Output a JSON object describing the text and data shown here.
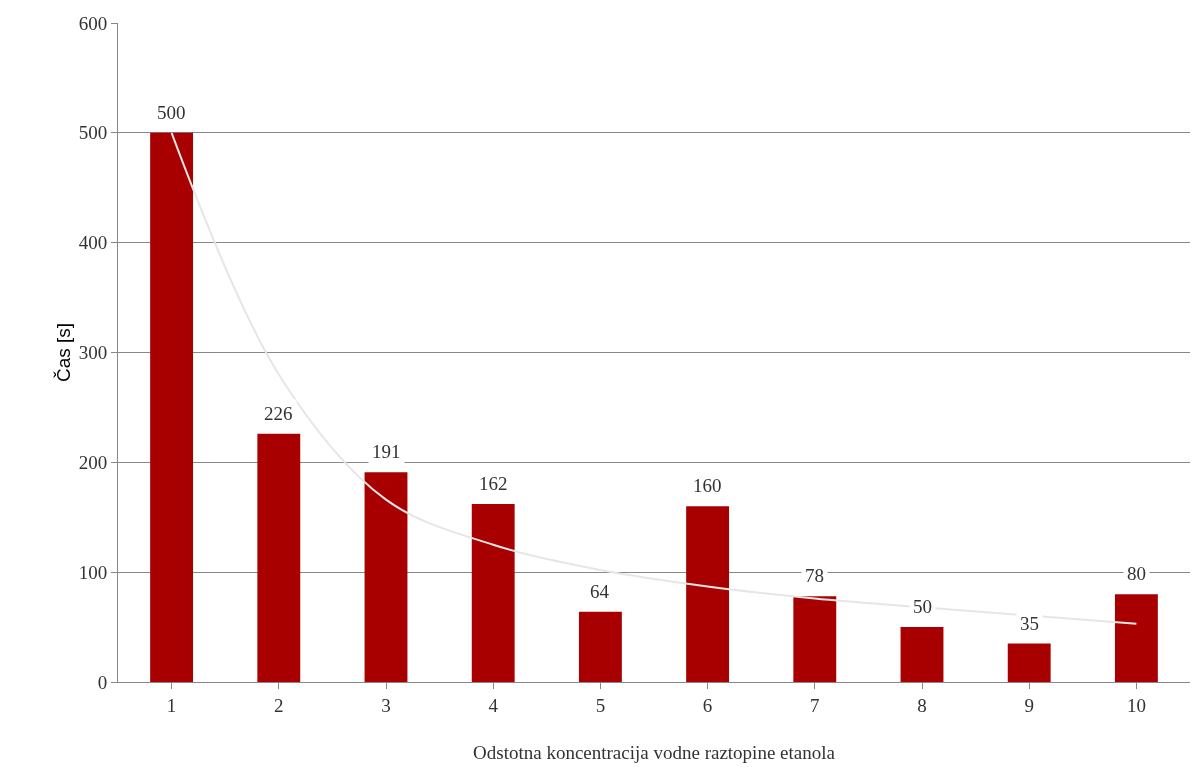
{
  "chart_data": {
    "type": "bar",
    "xlabel": "Odstotna koncentracija vodne raztopine etanola",
    "ylabel": "Čas [s]",
    "categories": [
      "1",
      "2",
      "3",
      "4",
      "5",
      "6",
      "7",
      "8",
      "9",
      "10"
    ],
    "series": [
      {
        "color": "#a80000",
        "values": [
          500,
          226,
          191,
          162,
          64,
          160,
          78,
          50,
          35,
          80
        ],
        "value_labels": [
          "500",
          "226",
          "191",
          "162",
          "64",
          "160",
          "78",
          "50",
          "35",
          "80"
        ]
      },
      {
        "type": "line",
        "color": "#e6e6e6",
        "x": [
          "1",
          "2",
          "3",
          "4",
          "5",
          "6",
          "7",
          "8",
          "9",
          "10"
        ],
        "values": [
          500,
          280,
          166,
          125,
          102,
          87,
          76,
          68,
          null,
          53
        ]
      }
    ],
    "ylim": [
      0,
      600
    ],
    "yticks": [
      0,
      100,
      200,
      300,
      400,
      500,
      600
    ],
    "grid": "y"
  }
}
